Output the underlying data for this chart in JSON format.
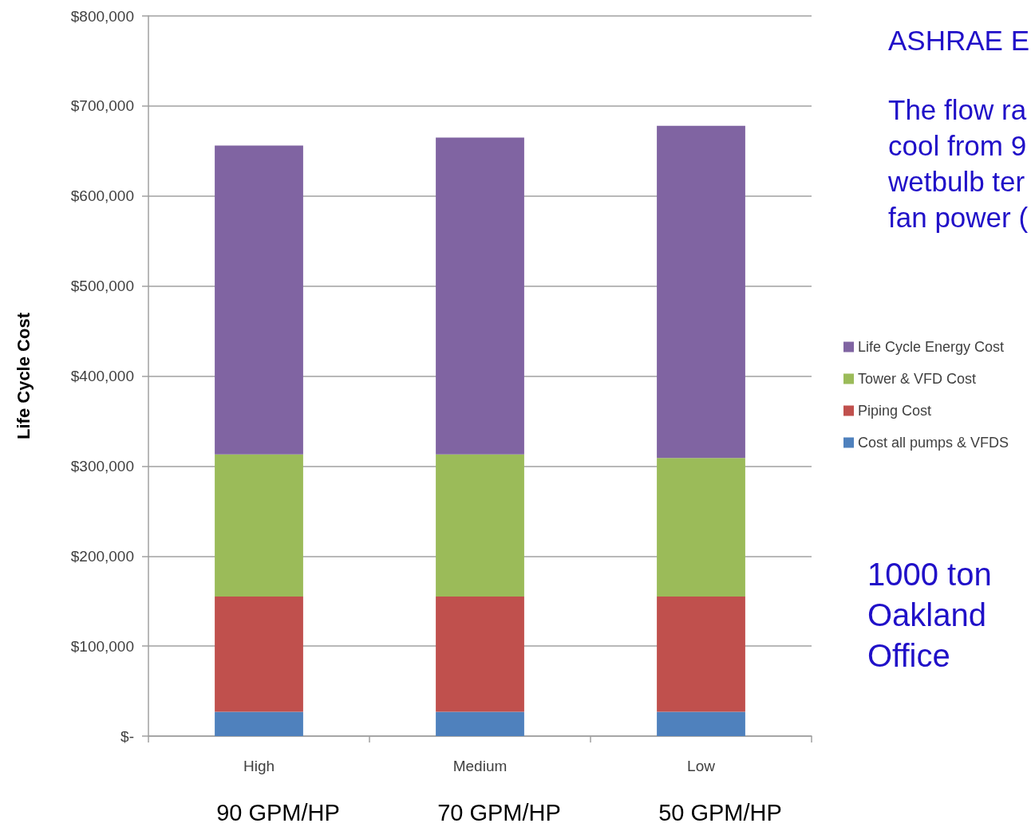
{
  "chart_data": {
    "type": "bar",
    "categories": [
      "High",
      "Medium",
      "Low"
    ],
    "stacked": true,
    "series": [
      {
        "name": "Cost all pumps & VFDS",
        "color": "#4f81bd",
        "values": [
          27000,
          27000,
          27000
        ]
      },
      {
        "name": "Piping Cost",
        "color": "#c0504d",
        "values": [
          128000,
          128000,
          128000
        ]
      },
      {
        "name": "Tower & VFD Cost",
        "color": "#9bbb59",
        "values": [
          158000,
          158000,
          154000
        ]
      },
      {
        "name": "Life Cycle Energy Cost",
        "color": "#8064a2",
        "values": [
          343000,
          352000,
          369000
        ]
      }
    ],
    "ylabel": "Life Cycle Cost",
    "ylim": [
      0,
      800000
    ],
    "yticks": [
      {
        "value": 0,
        "label": "$-"
      },
      {
        "value": 100000,
        "label": "$100,000"
      },
      {
        "value": 200000,
        "label": "$200,000"
      },
      {
        "value": 300000,
        "label": "$300,000"
      },
      {
        "value": 400000,
        "label": "$400,000"
      },
      {
        "value": 500000,
        "label": "$500,000"
      },
      {
        "value": 600000,
        "label": "$600,000"
      },
      {
        "value": 700000,
        "label": "$700,000"
      },
      {
        "value": 800000,
        "label": "$800,000"
      }
    ],
    "grid": "y",
    "legend": "right",
    "annotations": [
      "ASHRAE E",
      "The flow ra\ncool from 9\nwetbulb ter\nfan power (",
      "1000 ton\nOakland\nOffice",
      "90 GPM/HP",
      "70 GPM/HP",
      "50 GPM/HP"
    ]
  }
}
